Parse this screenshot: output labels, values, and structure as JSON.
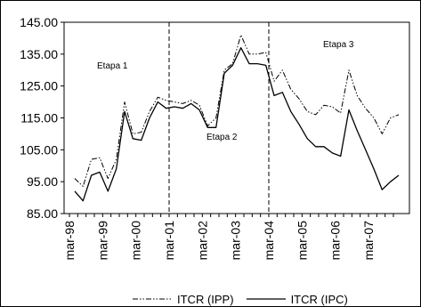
{
  "chart_data": {
    "type": "line",
    "title": "",
    "xlabel": "",
    "ylabel": "",
    "ylim": [
      85,
      145
    ],
    "y_ticks": [
      "85.00",
      "95.00",
      "105.00",
      "115.00",
      "125.00",
      "135.00",
      "145.00"
    ],
    "x_tick_labels": [
      "mar-98",
      "mar-99",
      "mar-00",
      "mar-01",
      "mar-02",
      "mar-03",
      "mar-04",
      "mar-05",
      "mar-06",
      "mar-07"
    ],
    "x_ticks_quarter_index": [
      0,
      4,
      8,
      12,
      16,
      20,
      24,
      28,
      32,
      36
    ],
    "grid": false,
    "legend_position": "bottom",
    "vertical_markers": [
      {
        "x_label": "mar-01",
        "style": "dashed"
      },
      {
        "x_label": "mar-04",
        "style": "dashed"
      }
    ],
    "annotations": [
      {
        "text": "Etapa 1"
      },
      {
        "text": "Etapa  2"
      },
      {
        "text": "Etapa 3"
      }
    ],
    "series": [
      {
        "name": "ITCR (IPP)",
        "style": "dash-dot-dot",
        "values": [
          96,
          93.5,
          102,
          102.5,
          96,
          102,
          120,
          110,
          110.5,
          117,
          121.5,
          120.5,
          120,
          119.5,
          120.5,
          119,
          112.5,
          115,
          130,
          132,
          141,
          135,
          135,
          135.5,
          126.5,
          130,
          124,
          121,
          117,
          116,
          119,
          118.5,
          116.5,
          130,
          122,
          118,
          115,
          110,
          115,
          116
        ]
      },
      {
        "name": "ITCR (IPC)",
        "style": "solid",
        "values": [
          92,
          89,
          97,
          98,
          92,
          99,
          117,
          108.5,
          108,
          115,
          120,
          118,
          118.5,
          118,
          119.5,
          117.5,
          112,
          112,
          129,
          131.5,
          137,
          132,
          132,
          131.5,
          122,
          123,
          117,
          113,
          108.5,
          106,
          106,
          104,
          103,
          117.5,
          111,
          105,
          99,
          92.5,
          95,
          97
        ]
      }
    ]
  }
}
